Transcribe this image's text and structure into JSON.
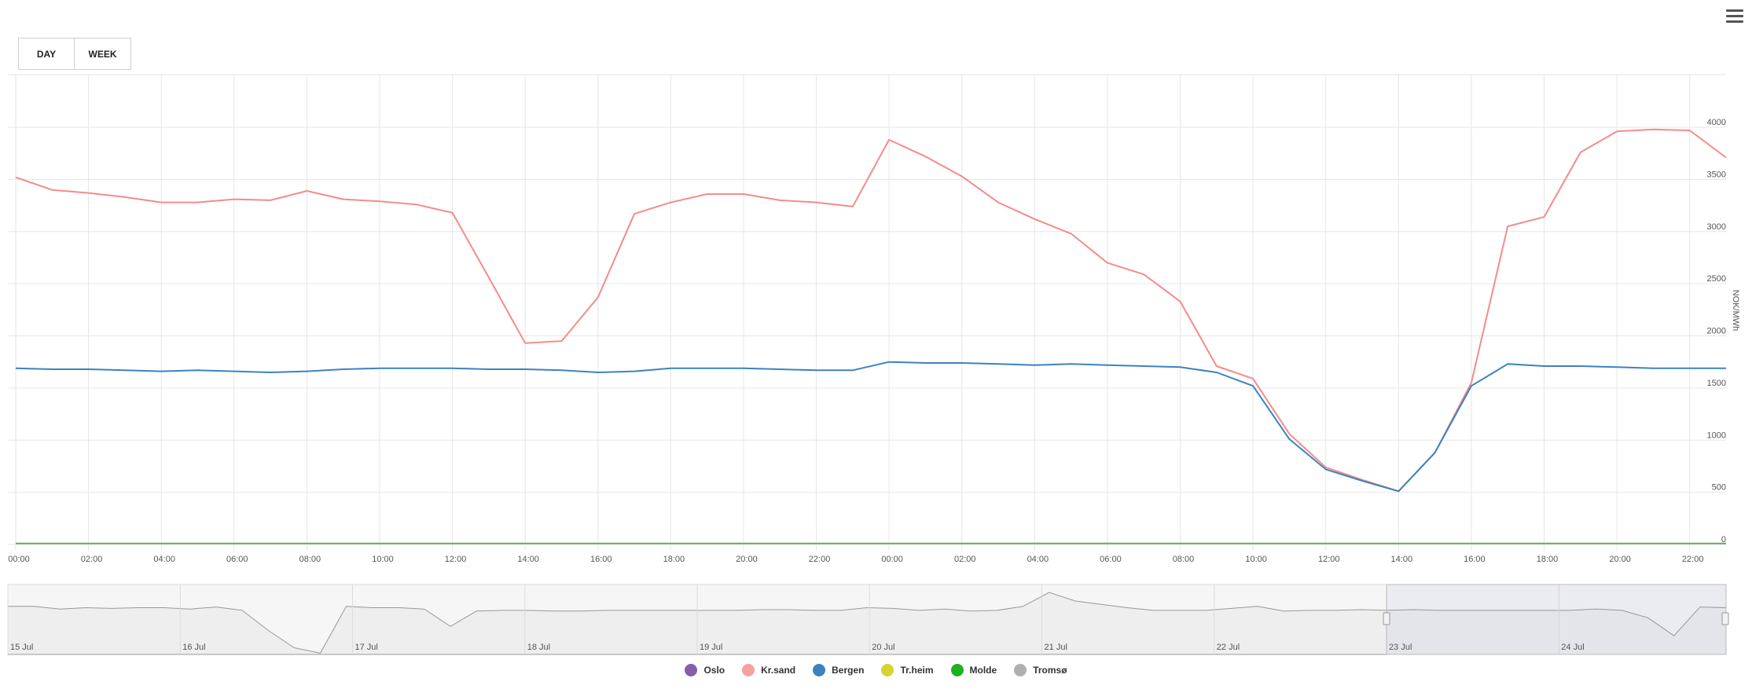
{
  "toolbar": {
    "day_label": "DAY",
    "week_label": "WEEK"
  },
  "chart_data": {
    "type": "line",
    "title": "",
    "xlabel": "",
    "ylabel": "NOK/MWh",
    "ylim": [
      0,
      4000
    ],
    "y_ticks": [
      0,
      500,
      1000,
      1500,
      2000,
      2500,
      3000,
      3500,
      4000
    ],
    "x_tick_labels": [
      "00:00",
      "02:00",
      "04:00",
      "06:00",
      "08:00",
      "10:00",
      "12:00",
      "14:00",
      "16:00",
      "18:00",
      "20:00",
      "22:00",
      "00:00",
      "02:00",
      "04:00",
      "06:00",
      "08:00",
      "10:00",
      "12:00",
      "14:00",
      "16:00",
      "18:00",
      "20:00",
      "22:00"
    ],
    "x_start": "00:00",
    "x_end": "23:00",
    "hours": 47,
    "grid": true,
    "legend_position": "bottom-center",
    "series": [
      {
        "name": "Oslo",
        "color": "#8660a6",
        "values": []
      },
      {
        "name": "Kr.sand",
        "color": "#f7a0a0",
        "line_color": "#f48b8b",
        "values": [
          3520,
          3400,
          3370,
          3330,
          3280,
          3280,
          3310,
          3300,
          3390,
          3310,
          3290,
          3260,
          3180,
          2560,
          1930,
          1950,
          2370,
          3170,
          3280,
          3360,
          3360,
          3300,
          3280,
          3240,
          3880,
          3720,
          3530,
          3280,
          3120,
          2980,
          2700,
          2590,
          2330,
          1710,
          1590,
          1060,
          740,
          620,
          510,
          880,
          1550,
          3050,
          3140,
          3760,
          3960,
          3980,
          3970,
          3710
        ]
      },
      {
        "name": "Bergen",
        "color": "#3c82bf",
        "values": [
          1690,
          1680,
          1680,
          1670,
          1660,
          1670,
          1660,
          1650,
          1660,
          1680,
          1690,
          1690,
          1690,
          1680,
          1680,
          1670,
          1650,
          1660,
          1690,
          1690,
          1690,
          1680,
          1670,
          1670,
          1750,
          1740,
          1740,
          1730,
          1720,
          1730,
          1720,
          1710,
          1700,
          1650,
          1520,
          1010,
          720,
          610,
          510,
          880,
          1520,
          1730,
          1710,
          1710,
          1700,
          1690,
          1690,
          1690
        ]
      },
      {
        "name": "Tr.heim",
        "color": "#d8d22f",
        "values": []
      },
      {
        "name": "Molde",
        "color": "#1fb01f",
        "line_color": "#6aa86a",
        "values": [
          10,
          10,
          10,
          10,
          10,
          10,
          10,
          10,
          10,
          10,
          10,
          10,
          10,
          10,
          10,
          10,
          10,
          10,
          10,
          10,
          10,
          10,
          10,
          10,
          10,
          10,
          10,
          10,
          10,
          10,
          10,
          10,
          10,
          10,
          10,
          10,
          10,
          10,
          10,
          10,
          10,
          10,
          10,
          10,
          10,
          10,
          10,
          10
        ]
      },
      {
        "name": "Tromsø",
        "color": "#b0b0b0",
        "values": []
      }
    ],
    "navigator": {
      "labels": [
        "15 Jul",
        "16 Jul",
        "17 Jul",
        "18 Jul",
        "19 Jul",
        "20 Jul",
        "21 Jul",
        "22 Jul",
        "23 Jul",
        "24 Jul"
      ],
      "values": [
        0.72,
        0.72,
        0.68,
        0.7,
        0.69,
        0.7,
        0.7,
        0.68,
        0.71,
        0.66,
        0.36,
        0.1,
        0.02,
        0.72,
        0.7,
        0.7,
        0.68,
        0.42,
        0.65,
        0.66,
        0.66,
        0.65,
        0.65,
        0.66,
        0.66,
        0.66,
        0.66,
        0.66,
        0.66,
        0.67,
        0.67,
        0.66,
        0.66,
        0.7,
        0.69,
        0.66,
        0.68,
        0.65,
        0.66,
        0.72,
        0.93,
        0.8,
        0.75,
        0.7,
        0.66,
        0.66,
        0.66,
        0.69,
        0.72,
        0.65,
        0.66,
        0.66,
        0.67,
        0.66,
        0.67,
        0.66,
        0.66,
        0.66,
        0.66,
        0.66,
        0.66,
        0.68,
        0.66,
        0.55,
        0.28,
        0.71,
        0.7
      ],
      "selection_start_label": "23 Jul"
    }
  }
}
